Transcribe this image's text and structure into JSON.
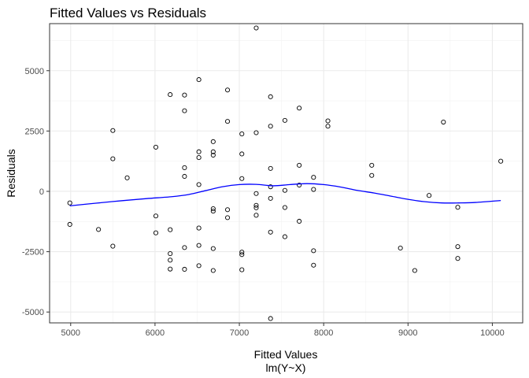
{
  "chart_data": {
    "type": "scatter",
    "title": "Fitted Values vs Residuals",
    "xlabel": "Fitted Values",
    "xlabel_sub": "lm(Y~X)",
    "ylabel": "Residuals",
    "xlim": [
      4750,
      10360
    ],
    "ylim": [
      -5450,
      6950
    ],
    "x_ticks": [
      5000,
      6000,
      7000,
      8000,
      9000,
      10000
    ],
    "y_ticks": [
      -5000,
      -2500,
      0,
      2500,
      5000
    ],
    "grid": true,
    "points_color": "#000000",
    "smooth_color": "#0000ff",
    "points": [
      {
        "x": 4990,
        "y": -480
      },
      {
        "x": 4990,
        "y": -1370
      },
      {
        "x": 5330,
        "y": -1580
      },
      {
        "x": 5500,
        "y": 2520
      },
      {
        "x": 5500,
        "y": 1350
      },
      {
        "x": 5500,
        "y": -2270
      },
      {
        "x": 5670,
        "y": 560
      },
      {
        "x": 6010,
        "y": 1830
      },
      {
        "x": 6010,
        "y": -1020
      },
      {
        "x": 6010,
        "y": -1720
      },
      {
        "x": 6180,
        "y": 4010
      },
      {
        "x": 6180,
        "y": -1590
      },
      {
        "x": 6180,
        "y": -2580
      },
      {
        "x": 6180,
        "y": -2850
      },
      {
        "x": 6180,
        "y": -3220
      },
      {
        "x": 6350,
        "y": 3990
      },
      {
        "x": 6350,
        "y": 3340
      },
      {
        "x": 6350,
        "y": 980
      },
      {
        "x": 6350,
        "y": 620
      },
      {
        "x": 6350,
        "y": -2330
      },
      {
        "x": 6350,
        "y": -3230
      },
      {
        "x": 6520,
        "y": 4630
      },
      {
        "x": 6520,
        "y": 1640
      },
      {
        "x": 6520,
        "y": 1400
      },
      {
        "x": 6520,
        "y": 280
      },
      {
        "x": 6520,
        "y": -1520
      },
      {
        "x": 6520,
        "y": -2240
      },
      {
        "x": 6520,
        "y": -3080
      },
      {
        "x": 6690,
        "y": 2060
      },
      {
        "x": 6690,
        "y": 1640
      },
      {
        "x": 6690,
        "y": 1500
      },
      {
        "x": 6690,
        "y": -720
      },
      {
        "x": 6690,
        "y": -820
      },
      {
        "x": 6690,
        "y": -2370
      },
      {
        "x": 6690,
        "y": -3280
      },
      {
        "x": 6860,
        "y": 4200
      },
      {
        "x": 6860,
        "y": 2900
      },
      {
        "x": 6860,
        "y": -760
      },
      {
        "x": 6860,
        "y": -1090
      },
      {
        "x": 7030,
        "y": 2380
      },
      {
        "x": 7030,
        "y": 1550
      },
      {
        "x": 7030,
        "y": 530
      },
      {
        "x": 7030,
        "y": -2520
      },
      {
        "x": 7030,
        "y": -2620
      },
      {
        "x": 7030,
        "y": -3250
      },
      {
        "x": 7200,
        "y": 6770
      },
      {
        "x": 7200,
        "y": 2430
      },
      {
        "x": 7200,
        "y": -90
      },
      {
        "x": 7200,
        "y": -580
      },
      {
        "x": 7200,
        "y": -680
      },
      {
        "x": 7200,
        "y": -990
      },
      {
        "x": 7370,
        "y": 3920
      },
      {
        "x": 7370,
        "y": 2700
      },
      {
        "x": 7370,
        "y": 950
      },
      {
        "x": 7370,
        "y": 190
      },
      {
        "x": 7370,
        "y": -290
      },
      {
        "x": 7370,
        "y": -1690
      },
      {
        "x": 7370,
        "y": -5270
      },
      {
        "x": 7540,
        "y": 2940
      },
      {
        "x": 7540,
        "y": 40
      },
      {
        "x": 7540,
        "y": -670
      },
      {
        "x": 7540,
        "y": -1880
      },
      {
        "x": 7710,
        "y": 3450
      },
      {
        "x": 7710,
        "y": 1080
      },
      {
        "x": 7710,
        "y": 260
      },
      {
        "x": 7710,
        "y": -1240
      },
      {
        "x": 7880,
        "y": 580
      },
      {
        "x": 7880,
        "y": 80
      },
      {
        "x": 7880,
        "y": -2460
      },
      {
        "x": 7880,
        "y": -3060
      },
      {
        "x": 8050,
        "y": 2920
      },
      {
        "x": 8050,
        "y": 2700
      },
      {
        "x": 8570,
        "y": 1080
      },
      {
        "x": 8570,
        "y": 660
      },
      {
        "x": 8910,
        "y": -2350
      },
      {
        "x": 9080,
        "y": -3280
      },
      {
        "x": 9250,
        "y": -170
      },
      {
        "x": 9420,
        "y": 2870
      },
      {
        "x": 9590,
        "y": -660
      },
      {
        "x": 9590,
        "y": -2290
      },
      {
        "x": 9590,
        "y": -2780
      },
      {
        "x": 10100,
        "y": 1250
      }
    ],
    "smooth_line": [
      {
        "x": 4990,
        "y": -600
      },
      {
        "x": 5300,
        "y": -490
      },
      {
        "x": 5600,
        "y": -390
      },
      {
        "x": 5900,
        "y": -300
      },
      {
        "x": 6200,
        "y": -220
      },
      {
        "x": 6400,
        "y": -130
      },
      {
        "x": 6600,
        "y": 30
      },
      {
        "x": 6800,
        "y": 190
      },
      {
        "x": 7000,
        "y": 280
      },
      {
        "x": 7200,
        "y": 290
      },
      {
        "x": 7400,
        "y": 230
      },
      {
        "x": 7600,
        "y": 280
      },
      {
        "x": 7800,
        "y": 320
      },
      {
        "x": 8000,
        "y": 280
      },
      {
        "x": 8200,
        "y": 180
      },
      {
        "x": 8400,
        "y": 40
      },
      {
        "x": 8600,
        "y": -70
      },
      {
        "x": 8800,
        "y": -200
      },
      {
        "x": 9000,
        "y": -330
      },
      {
        "x": 9200,
        "y": -430
      },
      {
        "x": 9400,
        "y": -480
      },
      {
        "x": 9600,
        "y": -480
      },
      {
        "x": 9800,
        "y": -460
      },
      {
        "x": 10100,
        "y": -380
      }
    ]
  }
}
